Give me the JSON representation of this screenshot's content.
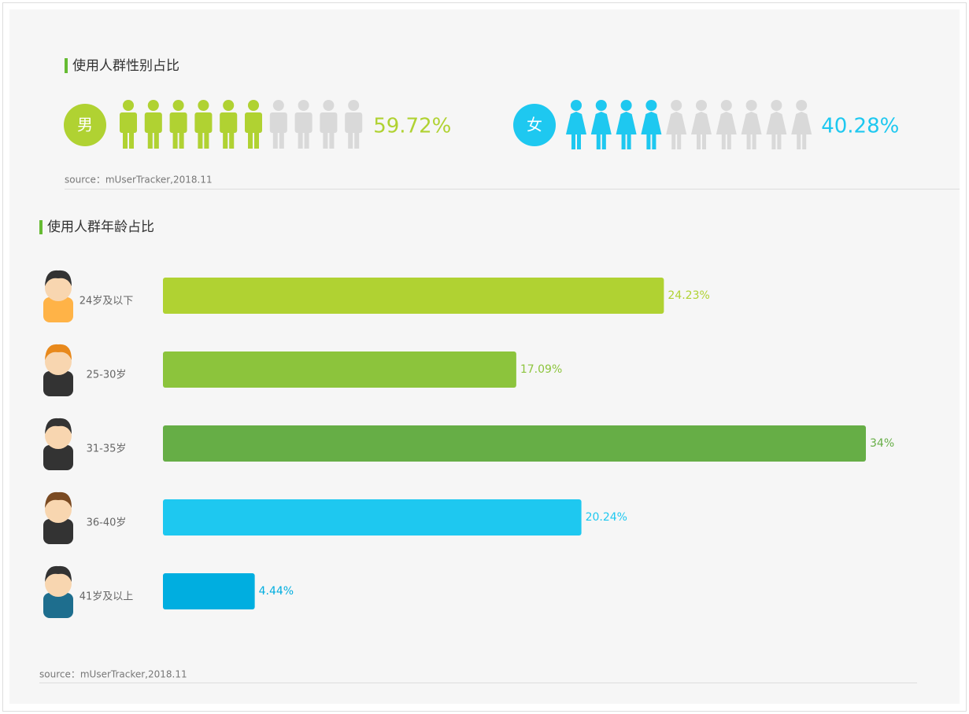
{
  "chart_data": [
    {
      "type": "pictogram",
      "title": "使用人群性别占比",
      "series": [
        {
          "name": "男",
          "color": "#b0d232",
          "values": [
            59.72
          ],
          "value_labels": [
            "59.72%"
          ]
        },
        {
          "name": "女",
          "color": "#1ec8f0",
          "values": [
            40.28
          ],
          "value_labels": [
            "40.28%"
          ]
        }
      ],
      "source": "source：mUserTracker,2018.11"
    },
    {
      "type": "hbar",
      "title": "使用人群年龄占比",
      "categories": [
        "24岁及以下",
        "25-30岁",
        "31-35岁",
        "36-40岁",
        "41岁及以上"
      ],
      "values": [
        24.23,
        17.09,
        34,
        20.24,
        4.44
      ],
      "value_labels": [
        "24.23%",
        "17.09%",
        "34%",
        "20.24%",
        "4.44%"
      ],
      "colors": [
        "#b0d232",
        "#8cc43c",
        "#66ae46",
        "#1ec8f0",
        "#00aee0"
      ],
      "source": "source：mUserTracker,2018.11"
    }
  ]
}
